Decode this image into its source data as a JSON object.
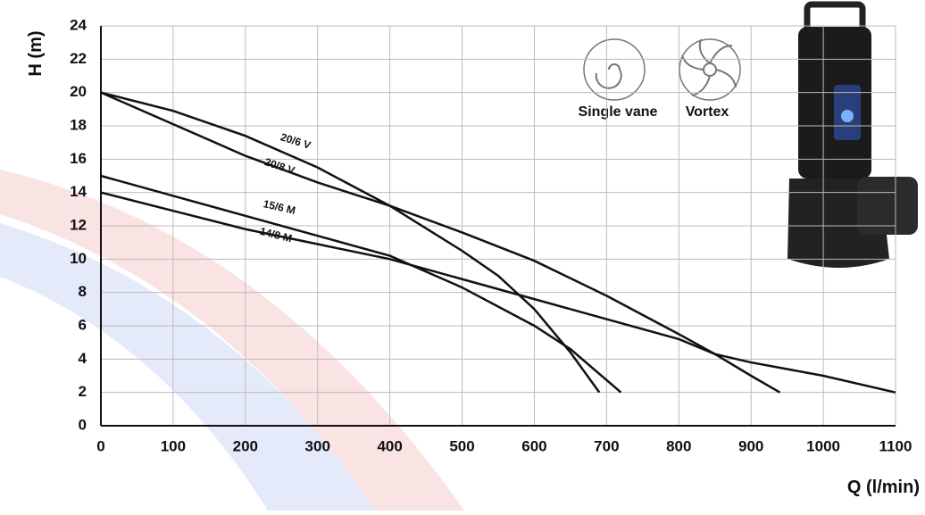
{
  "chart_data": {
    "type": "line",
    "x_label": "Q (l/min)",
    "y_label": "H (m)",
    "xlim": [
      0,
      1100
    ],
    "xticks": [
      0,
      100,
      200,
      300,
      400,
      500,
      600,
      700,
      800,
      900,
      1000,
      1100
    ],
    "ylim": [
      0,
      24
    ],
    "yticks": [
      0,
      2,
      4,
      6,
      8,
      10,
      12,
      14,
      16,
      18,
      20,
      22,
      24
    ],
    "grid": true,
    "series": [
      {
        "name": "20/6 V",
        "color": "#111111",
        "x": [
          0,
          100,
          200,
          300,
          400,
          500,
          550,
          600,
          650,
          690
        ],
        "values": [
          20,
          18.9,
          17.4,
          15.5,
          13.2,
          10.5,
          9,
          7,
          4.4,
          2
        ]
      },
      {
        "name": "20/8 V",
        "color": "#111111",
        "x": [
          0,
          100,
          200,
          300,
          400,
          500,
          600,
          700,
          800,
          850,
          900,
          940
        ],
        "values": [
          20,
          18.1,
          16.2,
          14.6,
          13.2,
          11.6,
          9.9,
          7.8,
          5.5,
          4.3,
          3,
          2
        ]
      },
      {
        "name": "15/6 M",
        "color": "#111111",
        "x": [
          0,
          100,
          200,
          300,
          400,
          500,
          600,
          650,
          720
        ],
        "values": [
          15,
          13.8,
          12.6,
          11.4,
          10.2,
          8.3,
          6,
          4.6,
          2
        ]
      },
      {
        "name": "14/8 M",
        "color": "#111111",
        "x": [
          0,
          100,
          200,
          300,
          400,
          500,
          600,
          700,
          800,
          850,
          900,
          1000,
          1100
        ],
        "values": [
          14,
          12.9,
          11.8,
          10.9,
          10,
          8.8,
          7.6,
          6.4,
          5.2,
          4.3,
          3.8,
          3,
          2
        ]
      }
    ],
    "impeller_labels": [
      "Single vane",
      "Vortex"
    ]
  }
}
